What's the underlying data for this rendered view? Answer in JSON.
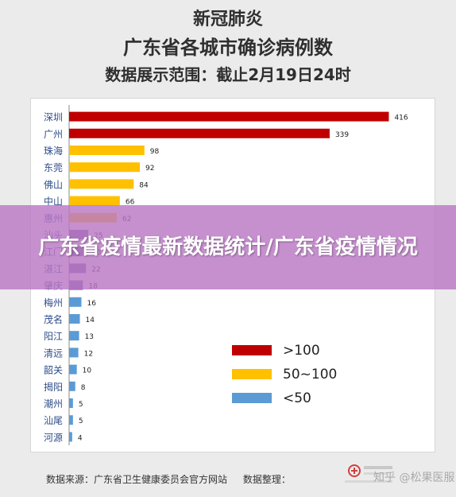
{
  "header": {
    "title": "新冠肺炎",
    "subtitle": "广东省各城市确诊病例数",
    "range": "数据展示范围：截止2月19日24时"
  },
  "footer": {
    "source": "数据来源：广东省卫生健康委员会官方网站",
    "organizer": "数据整理："
  },
  "watermark": "知乎 @松果医服",
  "banner": "广东省疫情最新数据统计/广东省疫情情况",
  "colors": {
    "high": "#c00000",
    "mid": "#ffc000",
    "low": "#5b9bd5",
    "purple": "#7b5ea7"
  },
  "chart_data": {
    "type": "bar",
    "orientation": "horizontal",
    "categories": [
      "深圳",
      "广州",
      "珠海",
      "东莞",
      "佛山",
      "中山",
      "惠州",
      "汕头",
      "江门",
      "湛江",
      "肇庆",
      "梅州",
      "茂名",
      "阳江",
      "清远",
      "韶关",
      "揭阳",
      "潮州",
      "汕尾",
      "河源"
    ],
    "values": [
      416,
      339,
      98,
      92,
      84,
      66,
      62,
      25,
      23,
      22,
      18,
      16,
      14,
      13,
      12,
      10,
      8,
      5,
      5,
      4
    ],
    "bar_colors": [
      "high",
      "high",
      "mid",
      "mid",
      "mid",
      "mid",
      "mid",
      "purple",
      "purple",
      "purple",
      "purple",
      "low",
      "low",
      "low",
      "low",
      "low",
      "low",
      "low",
      "low",
      "low"
    ],
    "xlim": [
      0,
      430
    ],
    "legend": [
      {
        "label": ">100",
        "color": "high"
      },
      {
        "label": "50~100",
        "color": "mid"
      },
      {
        "label": "<50",
        "color": "low"
      }
    ],
    "legend_position": "bottom-right",
    "grid": false
  }
}
